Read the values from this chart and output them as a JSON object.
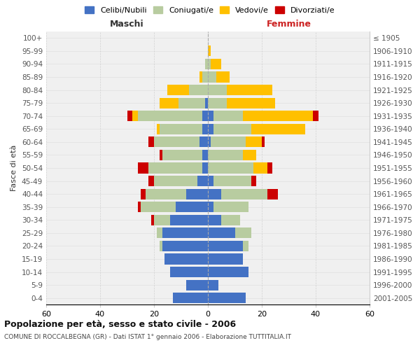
{
  "age_groups": [
    "0-4",
    "5-9",
    "10-14",
    "15-19",
    "20-24",
    "25-29",
    "30-34",
    "35-39",
    "40-44",
    "45-49",
    "50-54",
    "55-59",
    "60-64",
    "65-69",
    "70-74",
    "75-79",
    "80-84",
    "85-89",
    "90-94",
    "95-99",
    "100+"
  ],
  "birth_years": [
    "2001-2005",
    "1996-2000",
    "1991-1995",
    "1986-1990",
    "1981-1985",
    "1976-1980",
    "1971-1975",
    "1966-1970",
    "1961-1965",
    "1956-1960",
    "1951-1955",
    "1946-1950",
    "1941-1945",
    "1936-1940",
    "1931-1935",
    "1926-1930",
    "1921-1925",
    "1916-1920",
    "1911-1915",
    "1906-1910",
    "≤ 1905"
  ],
  "male": {
    "celibi": [
      13,
      8,
      14,
      16,
      17,
      17,
      14,
      12,
      8,
      4,
      2,
      2,
      3,
      2,
      2,
      1,
      0,
      0,
      0,
      0,
      0
    ],
    "coniugati": [
      0,
      0,
      0,
      0,
      1,
      2,
      6,
      13,
      15,
      16,
      20,
      15,
      17,
      16,
      24,
      10,
      7,
      2,
      1,
      0,
      0
    ],
    "vedovi": [
      0,
      0,
      0,
      0,
      0,
      0,
      0,
      0,
      0,
      0,
      0,
      0,
      0,
      1,
      2,
      7,
      8,
      1,
      0,
      0,
      0
    ],
    "divorziati": [
      0,
      0,
      0,
      0,
      0,
      0,
      1,
      1,
      2,
      2,
      4,
      1,
      2,
      0,
      2,
      0,
      0,
      0,
      0,
      0,
      0
    ]
  },
  "female": {
    "nubili": [
      14,
      4,
      15,
      13,
      13,
      10,
      5,
      2,
      5,
      2,
      0,
      0,
      1,
      2,
      2,
      0,
      0,
      0,
      0,
      0,
      0
    ],
    "coniugate": [
      0,
      0,
      0,
      0,
      2,
      6,
      7,
      13,
      17,
      14,
      17,
      13,
      13,
      14,
      11,
      7,
      7,
      3,
      1,
      0,
      0
    ],
    "vedove": [
      0,
      0,
      0,
      0,
      0,
      0,
      0,
      0,
      0,
      0,
      5,
      5,
      6,
      20,
      26,
      18,
      17,
      5,
      4,
      1,
      0
    ],
    "divorziate": [
      0,
      0,
      0,
      0,
      0,
      0,
      0,
      0,
      4,
      2,
      2,
      0,
      1,
      0,
      2,
      0,
      0,
      0,
      0,
      0,
      0
    ]
  },
  "colors": {
    "celibi": "#4472c4",
    "coniugati": "#b8cca0",
    "vedovi": "#ffc000",
    "divorziati": "#cc0000"
  },
  "xlim": 60,
  "title": "Popolazione per età, sesso e stato civile - 2006",
  "subtitle": "COMUNE DI ROCCALBEGNA (GR) - Dati ISTAT 1° gennaio 2006 - Elaborazione TUTTITALIA.IT",
  "ylabel_left": "Fasce di età",
  "xlabel_left": "Maschi",
  "xlabel_right": "Femmine",
  "legend_labels": [
    "Celibi/Nubili",
    "Coniugati/e",
    "Vedovi/e",
    "Divorziati/e"
  ],
  "bg_color": "#f0f0f0",
  "grid_color": "#cccccc"
}
